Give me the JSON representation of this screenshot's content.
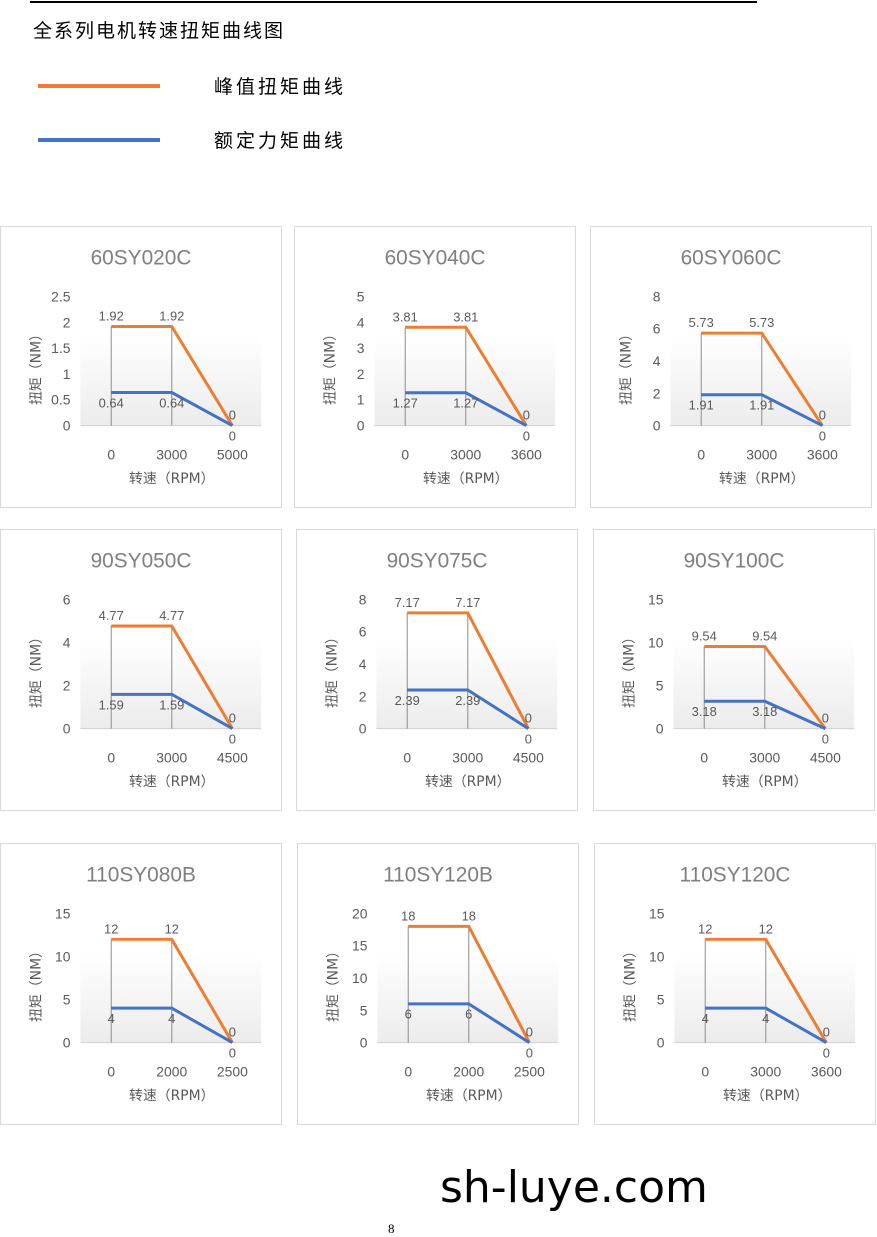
{
  "page": {
    "title": "全系列电机转速扭矩曲线图",
    "legend": [
      {
        "label": "峰值扭矩曲线",
        "color": "#ED7D31"
      },
      {
        "label": "额定力矩曲线",
        "color": "#4472C4"
      }
    ],
    "footer_site": "sh-luye.com",
    "page_number": "8"
  },
  "chart_data": [
    {
      "type": "line",
      "title": "60SY020C",
      "xlabel": "转速（RPM）",
      "ylabel": "扭矩（NM）",
      "categories": [
        "0",
        "3000",
        "5000"
      ],
      "ylim": [
        0,
        2.5
      ],
      "ystep": 0.5,
      "series": [
        {
          "color": "#ED7D31",
          "values": [
            1.92,
            1.92,
            0
          ],
          "labels": [
            "1.92",
            "1.92",
            "0"
          ]
        },
        {
          "color": "#4472C4",
          "values": [
            0.64,
            0.64,
            0
          ],
          "labels": [
            "0.64",
            "0.64",
            "0"
          ]
        }
      ]
    },
    {
      "type": "line",
      "title": "60SY040C",
      "xlabel": "转速（RPM）",
      "ylabel": "扭矩（NM）",
      "categories": [
        "0",
        "3000",
        "3600"
      ],
      "ylim": [
        0,
        5
      ],
      "ystep": 1,
      "series": [
        {
          "color": "#ED7D31",
          "values": [
            3.81,
            3.81,
            0
          ],
          "labels": [
            "3.81",
            "3.81",
            "0"
          ]
        },
        {
          "color": "#4472C4",
          "values": [
            1.27,
            1.27,
            0
          ],
          "labels": [
            "1.27",
            "1.27",
            "0"
          ]
        }
      ]
    },
    {
      "type": "line",
      "title": "60SY060C",
      "xlabel": "转速（RPM）",
      "ylabel": "扭矩（NM）",
      "categories": [
        "0",
        "3000",
        "3600"
      ],
      "ylim": [
        0,
        8
      ],
      "ystep": 2,
      "series": [
        {
          "color": "#ED7D31",
          "values": [
            5.73,
            5.73,
            0
          ],
          "labels": [
            "5.73",
            "5.73",
            "0"
          ]
        },
        {
          "color": "#4472C4",
          "values": [
            1.91,
            1.91,
            0
          ],
          "labels": [
            "1.91",
            "1.91",
            "0"
          ]
        }
      ]
    },
    {
      "type": "line",
      "title": "90SY050C",
      "xlabel": "转速（RPM）",
      "ylabel": "扭矩（NM）",
      "categories": [
        "0",
        "3000",
        "4500"
      ],
      "ylim": [
        0,
        6
      ],
      "ystep": 2,
      "series": [
        {
          "color": "#ED7D31",
          "values": [
            4.77,
            4.77,
            0
          ],
          "labels": [
            "4.77",
            "4.77",
            "0"
          ]
        },
        {
          "color": "#4472C4",
          "values": [
            1.59,
            1.59,
            0
          ],
          "labels": [
            "1.59",
            "1.59",
            "0"
          ]
        }
      ]
    },
    {
      "type": "line",
      "title": "90SY075C",
      "xlabel": "转速（RPM）",
      "ylabel": "扭矩（NM）",
      "categories": [
        "0",
        "3000",
        "4500"
      ],
      "ylim": [
        0,
        8
      ],
      "ystep": 2,
      "series": [
        {
          "color": "#ED7D31",
          "values": [
            7.17,
            7.17,
            0
          ],
          "labels": [
            "7.17",
            "7.17",
            "0"
          ]
        },
        {
          "color": "#4472C4",
          "values": [
            2.39,
            2.39,
            0
          ],
          "labels": [
            "2.39",
            "2.39",
            "0"
          ]
        }
      ]
    },
    {
      "type": "line",
      "title": "90SY100C",
      "xlabel": "转速（RPM）",
      "ylabel": "扭矩（NM）",
      "categories": [
        "0",
        "3000",
        "4500"
      ],
      "ylim": [
        0,
        15
      ],
      "ystep": 5,
      "series": [
        {
          "color": "#ED7D31",
          "values": [
            9.54,
            9.54,
            0
          ],
          "labels": [
            "9.54",
            "9.54",
            "0"
          ]
        },
        {
          "color": "#4472C4",
          "values": [
            3.18,
            3.18,
            0
          ],
          "labels": [
            "3.18",
            "3.18",
            "0"
          ]
        }
      ]
    },
    {
      "type": "line",
      "title": "110SY080B",
      "xlabel": "转速（RPM）",
      "ylabel": "扭矩（NM）",
      "categories": [
        "0",
        "2000",
        "2500"
      ],
      "ylim": [
        0,
        15
      ],
      "ystep": 5,
      "series": [
        {
          "color": "#ED7D31",
          "values": [
            12,
            12,
            0
          ],
          "labels": [
            "12",
            "12",
            "0"
          ]
        },
        {
          "color": "#4472C4",
          "values": [
            4,
            4,
            0
          ],
          "labels": [
            "4",
            "4",
            "0"
          ]
        }
      ]
    },
    {
      "type": "line",
      "title": "110SY120B",
      "xlabel": "转速（RPM）",
      "ylabel": "扭矩（NM）",
      "categories": [
        "0",
        "2000",
        "2500"
      ],
      "ylim": [
        0,
        20
      ],
      "ystep": 5,
      "series": [
        {
          "color": "#ED7D31",
          "values": [
            18,
            18,
            0
          ],
          "labels": [
            "18",
            "18",
            "0"
          ]
        },
        {
          "color": "#4472C4",
          "values": [
            6,
            6,
            0
          ],
          "labels": [
            "6",
            "6",
            "0"
          ]
        }
      ]
    },
    {
      "type": "line",
      "title": "110SY120C",
      "xlabel": "转速（RPM）",
      "ylabel": "扭矩（NM）",
      "categories": [
        "0",
        "3000",
        "3600"
      ],
      "ylim": [
        0,
        15
      ],
      "ystep": 5,
      "series": [
        {
          "color": "#ED7D31",
          "values": [
            12,
            12,
            0
          ],
          "labels": [
            "12",
            "12",
            "0"
          ]
        },
        {
          "color": "#4472C4",
          "values": [
            4,
            4,
            0
          ],
          "labels": [
            "4",
            "4",
            "0"
          ]
        }
      ]
    }
  ]
}
